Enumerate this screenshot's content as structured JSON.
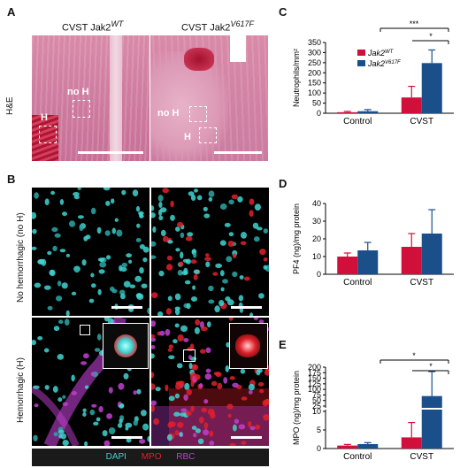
{
  "panels": {
    "A": {
      "label": "A",
      "row_label": "H&E",
      "col1_title": "CVST Jak2",
      "col1_sup": "WT",
      "col2_title": "CVST Jak2",
      "col2_sup": "V617F",
      "markers": {
        "h": "H",
        "noh": "no H"
      }
    },
    "B": {
      "label": "B",
      "row1_label": "No hemorrhagic (no H)",
      "row2_label": "Hemorrhagic (H)",
      "legend": {
        "dapi": "DAPI",
        "mpo": "MPO",
        "rbc": "RBC"
      }
    },
    "C": {
      "label": "C"
    },
    "D": {
      "label": "D"
    },
    "E": {
      "label": "E"
    }
  },
  "colors": {
    "wt": "#d0103a",
    "v617f": "#1a4f8a",
    "dapi": "#3fd3d0",
    "mpo": "#e0202a",
    "rbc": "#c040d0"
  },
  "chart_data": [
    {
      "type": "bar",
      "panel": "C",
      "categories": [
        "Control",
        "CVST"
      ],
      "series": [
        {
          "name": "Jak2 WT",
          "values": [
            5,
            78
          ],
          "errors": [
            4,
            55
          ]
        },
        {
          "name": "Jak2 V617F",
          "values": [
            10,
            248
          ],
          "errors": [
            8,
            65
          ]
        }
      ],
      "ylabel": "Neutrophils/mm²",
      "yticks": [
        0,
        50,
        100,
        150,
        200,
        250,
        300,
        350
      ],
      "ylim": [
        0,
        350
      ],
      "legend": [
        "Jak2",
        "Jak2"
      ],
      "legend_sup": [
        "WT",
        "V617F"
      ],
      "significance": [
        {
          "label": "***"
        },
        {
          "label": "*"
        }
      ]
    },
    {
      "type": "bar",
      "panel": "D",
      "categories": [
        "Control",
        "CVST"
      ],
      "series": [
        {
          "name": "Jak2 WT",
          "values": [
            10,
            15.5
          ],
          "errors": [
            2,
            7.5
          ]
        },
        {
          "name": "Jak2 V617F",
          "values": [
            13.5,
            23
          ],
          "errors": [
            4.5,
            13.5
          ]
        }
      ],
      "ylabel": "PF4 (ng)/mg protein",
      "yticks": [
        0,
        10,
        20,
        30,
        40
      ],
      "ylim": [
        0,
        40
      ]
    },
    {
      "type": "bar",
      "panel": "E",
      "categories": [
        "Control",
        "CVST"
      ],
      "series": [
        {
          "name": "Jak2 WT",
          "values": [
            0.8,
            3
          ],
          "errors": [
            0.3,
            4
          ]
        },
        {
          "name": "Jak2 V617F",
          "values": [
            1.2,
            70
          ],
          "errors": [
            0.4,
            110
          ]
        }
      ],
      "ylabel": "MPO (ng)/mg protein",
      "yticks_lower": [
        0,
        5,
        10
      ],
      "yticks_upper": [
        25,
        50,
        75,
        100,
        125,
        150,
        175,
        200
      ],
      "axis_break": [
        10,
        15
      ],
      "significance": [
        {
          "label": "*"
        },
        {
          "label": "*"
        }
      ]
    }
  ]
}
